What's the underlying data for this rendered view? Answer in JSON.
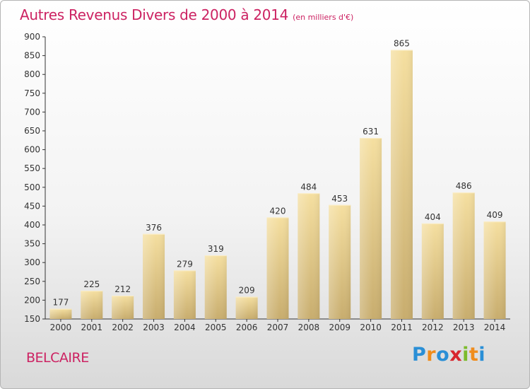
{
  "title": "Autres Revenus Divers de 2000 à 2014",
  "unit": "(en milliers d'€)",
  "city": "BELCAIRE",
  "logo": {
    "letters": [
      "P",
      "r",
      "o",
      "x",
      "i",
      "t",
      "i"
    ],
    "colors": [
      "#2a8fd6",
      "#f08c1c",
      "#2a8fd6",
      "#d8262e",
      "#7cbb2c",
      "#f08c1c",
      "#2a8fd6"
    ]
  },
  "colors": {
    "title": "#cc2262",
    "bar_light": "#f5dfa0",
    "bar_dark": "#c8ad6e"
  },
  "chart_data": {
    "type": "bar",
    "categories": [
      "2000",
      "2001",
      "2002",
      "2003",
      "2004",
      "2005",
      "2006",
      "2007",
      "2008",
      "2009",
      "2010",
      "2011",
      "2012",
      "2013",
      "2014"
    ],
    "values": [
      177,
      225,
      212,
      376,
      279,
      319,
      209,
      420,
      484,
      453,
      631,
      865,
      404,
      486,
      409
    ],
    "ylim": [
      150,
      900
    ],
    "yticks": [
      150,
      200,
      250,
      300,
      350,
      400,
      450,
      500,
      550,
      600,
      650,
      700,
      750,
      800,
      850,
      900
    ],
    "grid": false,
    "data_labels": true
  }
}
